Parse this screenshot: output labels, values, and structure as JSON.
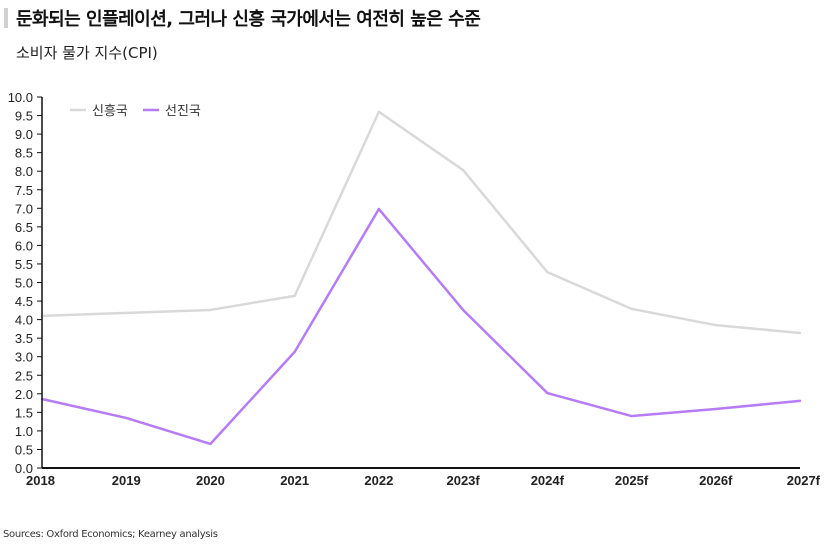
{
  "title": "둔화되는 인플레이션, 그러나 신흥 국가에서는 여전히 높은 수준",
  "subtitle": "소비자 물가 지수(CPI)",
  "source": "Sources: Oxford Economics; Kearney analysis",
  "chart_data": {
    "type": "line",
    "title": "소비자 물가 지수(CPI)",
    "xlabel": "",
    "ylabel": "",
    "ylim": [
      0,
      10
    ],
    "yticks": [
      "0.0",
      "0.5",
      "1.0",
      "1.5",
      "2.0",
      "2.5",
      "3.0",
      "3.5",
      "4.0",
      "4.5",
      "5.0",
      "5.5",
      "6.0",
      "6.5",
      "7.0",
      "7.5",
      "8.0",
      "8.5",
      "9.0",
      "9.5",
      "10.0"
    ],
    "categories": [
      "2018",
      "2019",
      "2020",
      "2021",
      "2022",
      "2023f",
      "2024f",
      "2025f",
      "2026f",
      "2027f"
    ],
    "legend_position": "top-left",
    "grid": false,
    "series": [
      {
        "name": "신흥국",
        "color": "#d9d9d9",
        "values": [
          4.1,
          4.18,
          4.26,
          4.64,
          9.6,
          8.03,
          5.28,
          4.29,
          3.85,
          3.64
        ]
      },
      {
        "name": "선진국",
        "color": "#b57cf5",
        "values": [
          1.86,
          1.35,
          0.65,
          3.13,
          6.98,
          4.26,
          2.02,
          1.4,
          1.59,
          1.81
        ]
      }
    ]
  }
}
